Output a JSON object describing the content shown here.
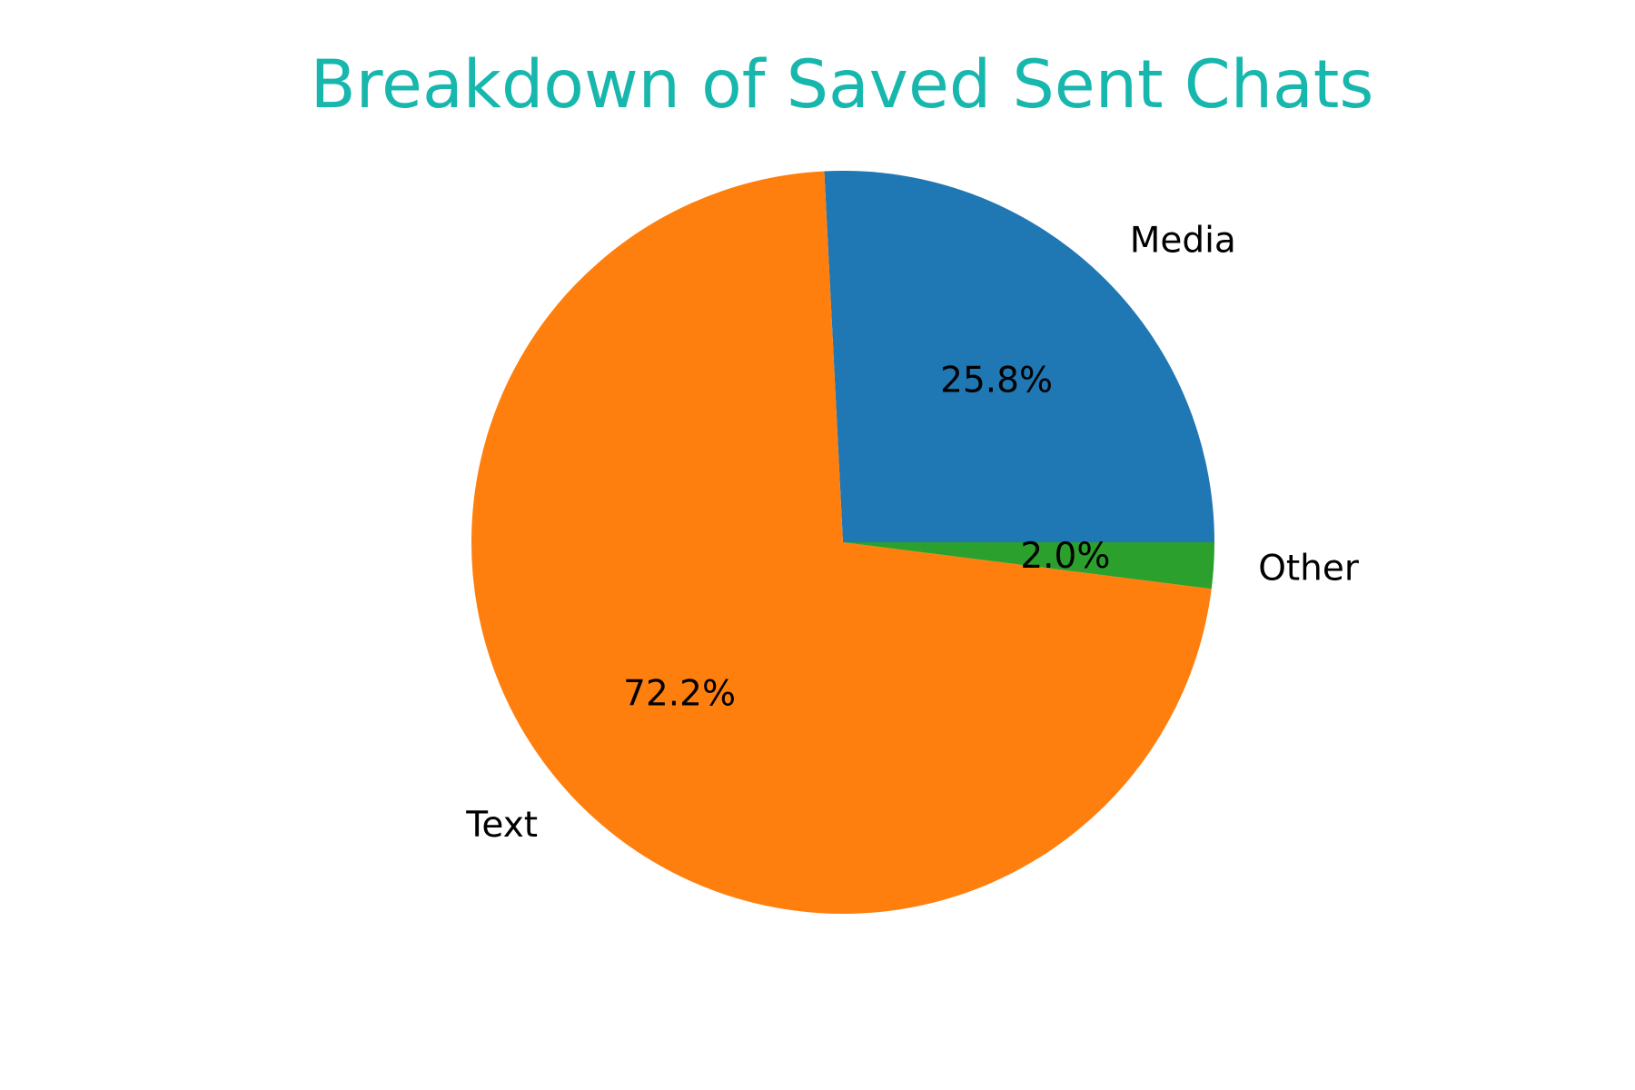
{
  "chart_data": {
    "type": "pie",
    "title": "Breakdown of Saved Sent Chats",
    "title_color": "#17b7ad",
    "slices": [
      {
        "label": "Media",
        "value": 25.8,
        "pct_label": "25.8%",
        "color": "#1f77b4"
      },
      {
        "label": "Text",
        "value": 72.2,
        "pct_label": "72.2%",
        "color": "#ff7f0e"
      },
      {
        "label": "Other",
        "value": 2.0,
        "pct_label": "2.0%",
        "color": "#2ca02c"
      }
    ],
    "start_angle_deg": 0,
    "direction": "counterclockwise"
  }
}
